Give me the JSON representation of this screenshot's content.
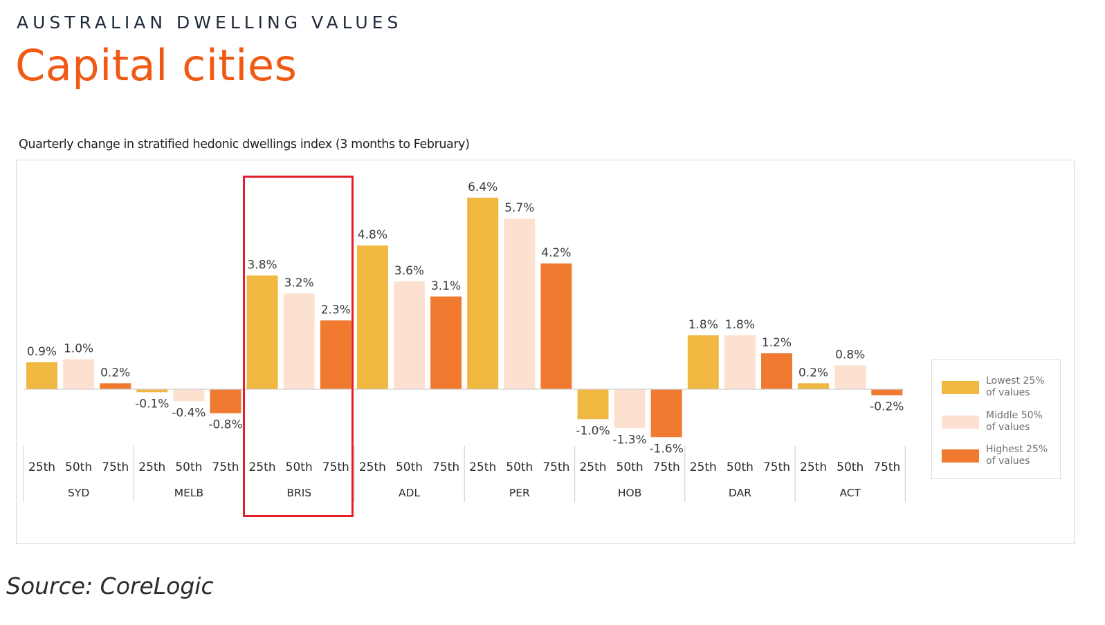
{
  "header": {
    "supertitle": "AUSTRALIAN DWELLING VALUES",
    "title": "Capital cities"
  },
  "source": "Source: CoreLogic",
  "chart_data": {
    "type": "bar",
    "title": "Quarterly change in stratified hedonic dwellings index (3 months to February)",
    "xlabel": "",
    "ylabel": "",
    "groups": [
      "SYD",
      "MELB",
      "BRIS",
      "ADL",
      "PER",
      "HOB",
      "DAR",
      "ACT"
    ],
    "subcategories": [
      "25th",
      "50th",
      "75th"
    ],
    "series": [
      {
        "name": "Lowest 25% of values",
        "legend_line1": "Lowest 25%",
        "legend_line2": "of values",
        "color": "#f0b840",
        "values": [
          0.9,
          -0.1,
          3.8,
          4.8,
          6.4,
          -1.0,
          1.8,
          0.2
        ],
        "labels": [
          "0.9%",
          "-0.1%",
          "3.8%",
          "4.8%",
          "6.4%",
          "-1.0%",
          "1.8%",
          "0.2%"
        ]
      },
      {
        "name": "Middle 50% of values",
        "legend_line1": "Middle 50%",
        "legend_line2": "of values",
        "color": "#fce0d0",
        "values": [
          1.0,
          -0.4,
          3.2,
          3.6,
          5.7,
          -1.3,
          1.8,
          0.8
        ],
        "labels": [
          "1.0%",
          "-0.4%",
          "3.2%",
          "3.6%",
          "5.7%",
          "-1.3%",
          "1.8%",
          "0.8%"
        ]
      },
      {
        "name": "Highest 25% of values",
        "legend_line1": "Highest 25%",
        "legend_line2": "of values",
        "color": "#f07a30",
        "values": [
          0.2,
          -0.8,
          2.3,
          3.1,
          4.2,
          -1.6,
          1.2,
          -0.2
        ],
        "labels": [
          "0.2%",
          "-0.8%",
          "2.3%",
          "3.1%",
          "4.2%",
          "-1.6%",
          "1.2%",
          "-0.2%"
        ]
      }
    ],
    "highlighted_group": "BRIS",
    "grid": false,
    "legend_position": "right"
  }
}
